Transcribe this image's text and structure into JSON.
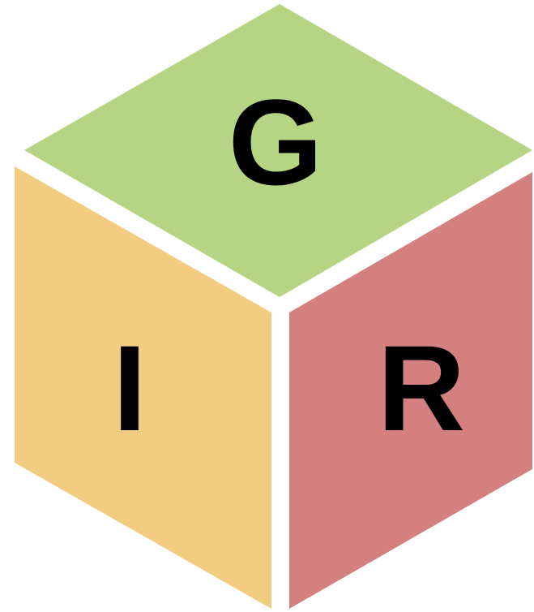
{
  "faces": [
    {
      "label": "G"
    },
    {
      "label": "I"
    },
    {
      "label": "R"
    }
  ]
}
